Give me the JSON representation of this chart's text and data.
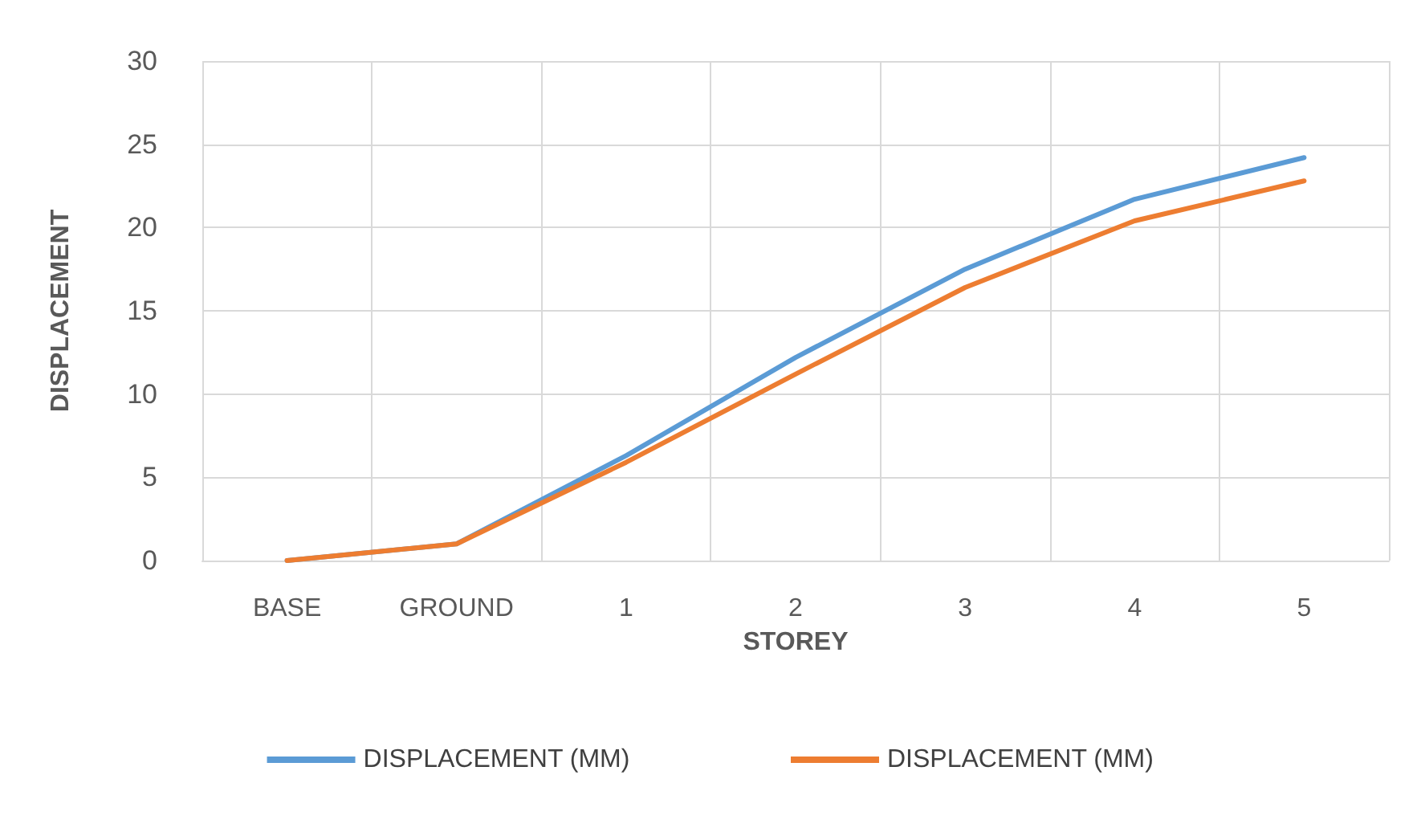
{
  "chart_data": {
    "type": "line",
    "xlabel": "STOREY",
    "ylabel": "DISPLACEMENT",
    "categories": [
      "BASE",
      "GROUND",
      "1",
      "2",
      "3",
      "4",
      "5"
    ],
    "series": [
      {
        "name": "DISPLACEMENT (MM)",
        "color": "#5b9bd5",
        "values": [
          0,
          1,
          6.3,
          12.2,
          17.5,
          21.7,
          24.2
        ]
      },
      {
        "name": "DISPLACEMENT (MM)",
        "color": "#ed7d31",
        "values": [
          0,
          1,
          5.9,
          11.2,
          16.4,
          20.4,
          22.8
        ]
      }
    ],
    "ylim": [
      0,
      30
    ],
    "yticks": [
      0,
      5,
      10,
      15,
      20,
      25,
      30
    ],
    "grid": true,
    "legend": "bottom",
    "marker": "none",
    "line_style": "solid"
  }
}
